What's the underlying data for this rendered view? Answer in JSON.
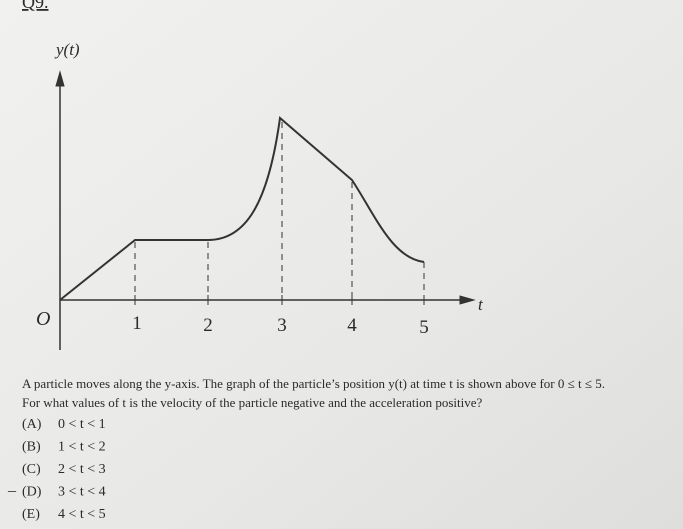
{
  "header": {
    "label": "Q9."
  },
  "graph": {
    "y_label": "y(t)",
    "x_label": "t",
    "origin": "O",
    "x_ticks": [
      "1",
      "2",
      "3",
      "4",
      "5"
    ]
  },
  "question": {
    "lines": [
      "A particle moves along the y-axis. The graph of the particle’s position y(t) at time t is shown above for 0 ≤ t ≤ 5.",
      "For what values of t is the velocity of the particle negative and the acceleration positive?"
    ]
  },
  "choices": [
    {
      "letter": "(A)",
      "text": "0 < t < 1"
    },
    {
      "letter": "(B)",
      "text": "1 < t < 2"
    },
    {
      "letter": "(C)",
      "text": "2 < t < 3"
    },
    {
      "letter": "(D)",
      "text": "3 < t < 4",
      "mark": "–"
    },
    {
      "letter": "(E)",
      "text": "4 < t < 5"
    }
  ]
}
